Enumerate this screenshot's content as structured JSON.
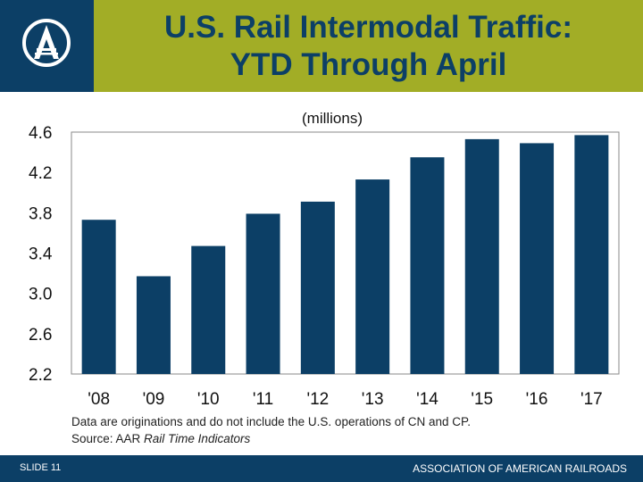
{
  "header": {
    "title_line1": "U.S. Rail Intermodal Traffic:",
    "title_line2": "YTD Through April",
    "logo": "compass-a-logo"
  },
  "chart_data": {
    "type": "bar",
    "title": "(millions)",
    "categories": [
      "'08",
      "'09",
      "'10",
      "'11",
      "'12",
      "'13",
      "'14",
      "'15",
      "'16",
      "'17"
    ],
    "values": [
      3.73,
      3.17,
      3.47,
      3.79,
      3.91,
      4.13,
      4.35,
      4.53,
      4.49,
      4.57
    ],
    "yticks": [
      "2.2",
      "2.6",
      "3.0",
      "3.4",
      "3.8",
      "4.2",
      "4.6"
    ],
    "ylim": [
      2.2,
      4.6
    ],
    "grid": false,
    "bar_color": "#0c3f66"
  },
  "notes": {
    "line1": "Data are originations and do not include the U.S. operations of CN and CP.",
    "line2_prefix": "Source: AAR ",
    "line2_italic": "Rail Time Indicators"
  },
  "footer": {
    "slide": "SLIDE 11",
    "org": "ASSOCIATION OF AMERICAN RAILROADS"
  },
  "colors": {
    "navy": "#0c3f66",
    "olive": "#a2ad26"
  }
}
